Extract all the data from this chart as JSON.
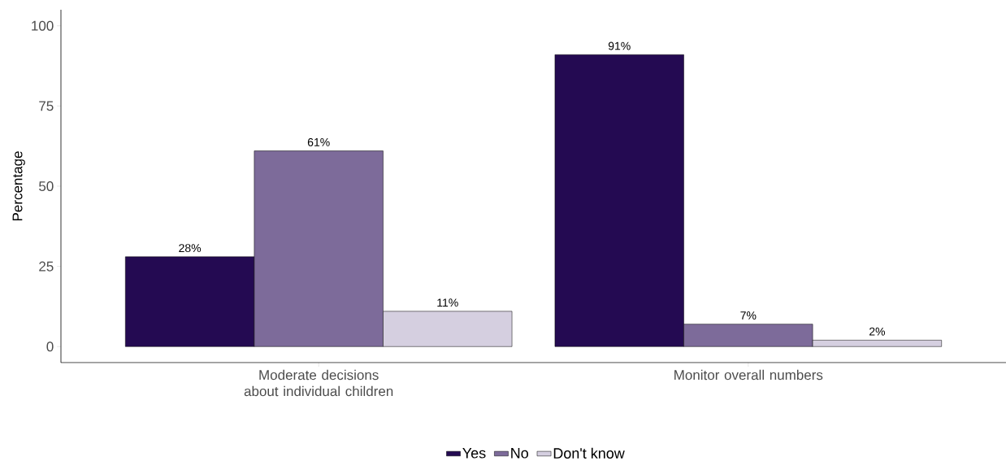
{
  "chart_data": {
    "type": "bar",
    "ylabel": "Percentage",
    "categories": [
      "Moderate decisions about individual children",
      "Monitor overall numbers"
    ],
    "series": [
      {
        "name": "Yes",
        "color": "#240a52",
        "values": [
          28,
          91
        ],
        "value_labels": [
          "28%",
          "91%"
        ]
      },
      {
        "name": "No",
        "color": "#7d6b9a",
        "values": [
          61,
          7
        ],
        "value_labels": [
          "61%",
          "7%"
        ]
      },
      {
        "name": "Don't know",
        "color": "#d5cfe0",
        "values": [
          11,
          2
        ],
        "value_labels": [
          "11%",
          "2%"
        ]
      }
    ],
    "ylim": [
      -5,
      105
    ],
    "yticks": [
      0,
      25,
      50,
      75,
      100
    ],
    "legend": "bottom"
  }
}
